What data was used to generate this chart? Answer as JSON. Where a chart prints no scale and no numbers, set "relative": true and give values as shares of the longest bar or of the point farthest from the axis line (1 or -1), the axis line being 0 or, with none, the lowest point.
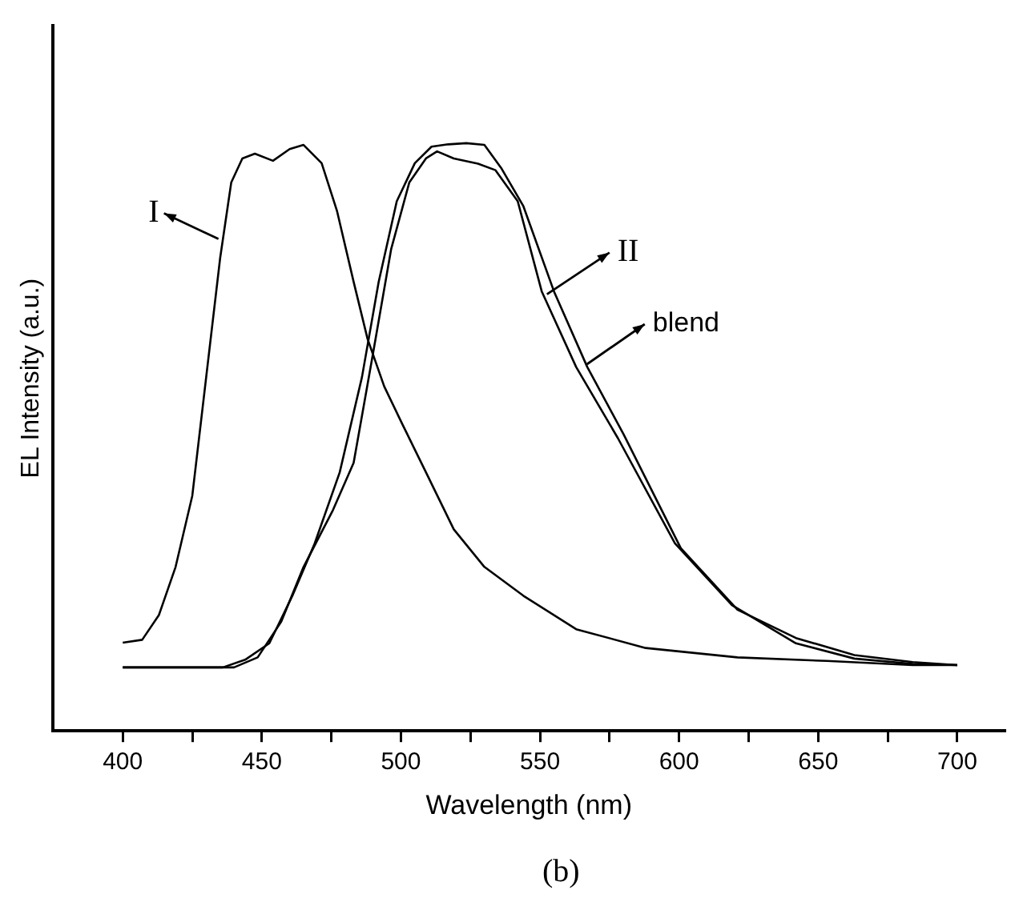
{
  "chart_data": {
    "type": "line",
    "xlabel": "Wavelength (nm)",
    "ylabel": "EL Intensity (a.u.)",
    "relative": true,
    "legend": false,
    "grid": false,
    "marker": "none",
    "line_style": "solid",
    "xlim": [
      375,
      717
    ],
    "xticks": [
      400,
      {
        "value": 425,
        "label": null
      },
      450,
      {
        "value": 475,
        "label": null
      },
      500,
      {
        "value": 525,
        "label": null
      },
      550,
      {
        "value": 575,
        "label": null
      },
      600,
      {
        "value": 625,
        "label": null
      },
      650,
      {
        "value": 675,
        "label": null
      },
      700
    ],
    "series": [
      {
        "color": "#000000",
        "x": [
          400,
          407,
          413,
          419,
          425,
          430,
          435,
          439,
          443,
          447.5,
          454,
          460,
          465,
          471.5,
          477,
          483,
          488,
          494,
          500.6,
          509,
          519,
          530,
          544,
          563,
          588,
          621,
          653,
          684,
          700
        ],
        "values": [
          0.15,
          0.155,
          0.197,
          0.279,
          0.4,
          0.602,
          0.804,
          0.933,
          0.974,
          0.982,
          0.97,
          0.99,
          0.997,
          0.966,
          0.885,
          0.764,
          0.667,
          0.586,
          0.521,
          0.44,
          0.343,
          0.279,
          0.23,
          0.173,
          0.141,
          0.125,
          0.119,
          0.112,
          0.112
        ]
      },
      {
        "color": "#000000",
        "x": [
          400,
          440,
          448.5,
          457,
          465,
          475.6,
          483,
          490,
          496.5,
          503,
          509,
          513,
          519,
          527.7,
          534,
          542,
          550.6,
          563,
          578,
          598.5,
          619,
          642,
          663,
          684,
          700
        ],
        "values": [
          0.108,
          0.108,
          0.125,
          0.186,
          0.279,
          0.376,
          0.456,
          0.643,
          0.82,
          0.933,
          0.974,
          0.986,
          0.974,
          0.965,
          0.954,
          0.901,
          0.748,
          0.619,
          0.498,
          0.319,
          0.214,
          0.149,
          0.123,
          0.114,
          0.112
        ]
      },
      {
        "color": "#000000",
        "x": [
          400,
          436,
          444,
          452.7,
          461,
          469,
          478,
          486,
          492,
          498.5,
          505,
          511,
          517,
          523.5,
          530,
          536,
          544,
          555,
          567,
          580,
          600.6,
          621,
          642,
          663,
          684,
          700
        ],
        "values": [
          0.108,
          0.108,
          0.121,
          0.149,
          0.23,
          0.319,
          0.44,
          0.602,
          0.764,
          0.901,
          0.966,
          0.994,
          0.998,
          1.0,
          0.997,
          0.958,
          0.893,
          0.748,
          0.619,
          0.505,
          0.311,
          0.206,
          0.158,
          0.129,
          0.117,
          0.112
        ]
      }
    ],
    "annotations": [
      {
        "text": "I",
        "x": 434.4,
        "y": 0.837
      },
      {
        "text": "II",
        "x": 552.5,
        "y": 0.743
      },
      {
        "text": "blend",
        "x": 566.9,
        "y": 0.624
      },
      "(b)"
    ]
  }
}
